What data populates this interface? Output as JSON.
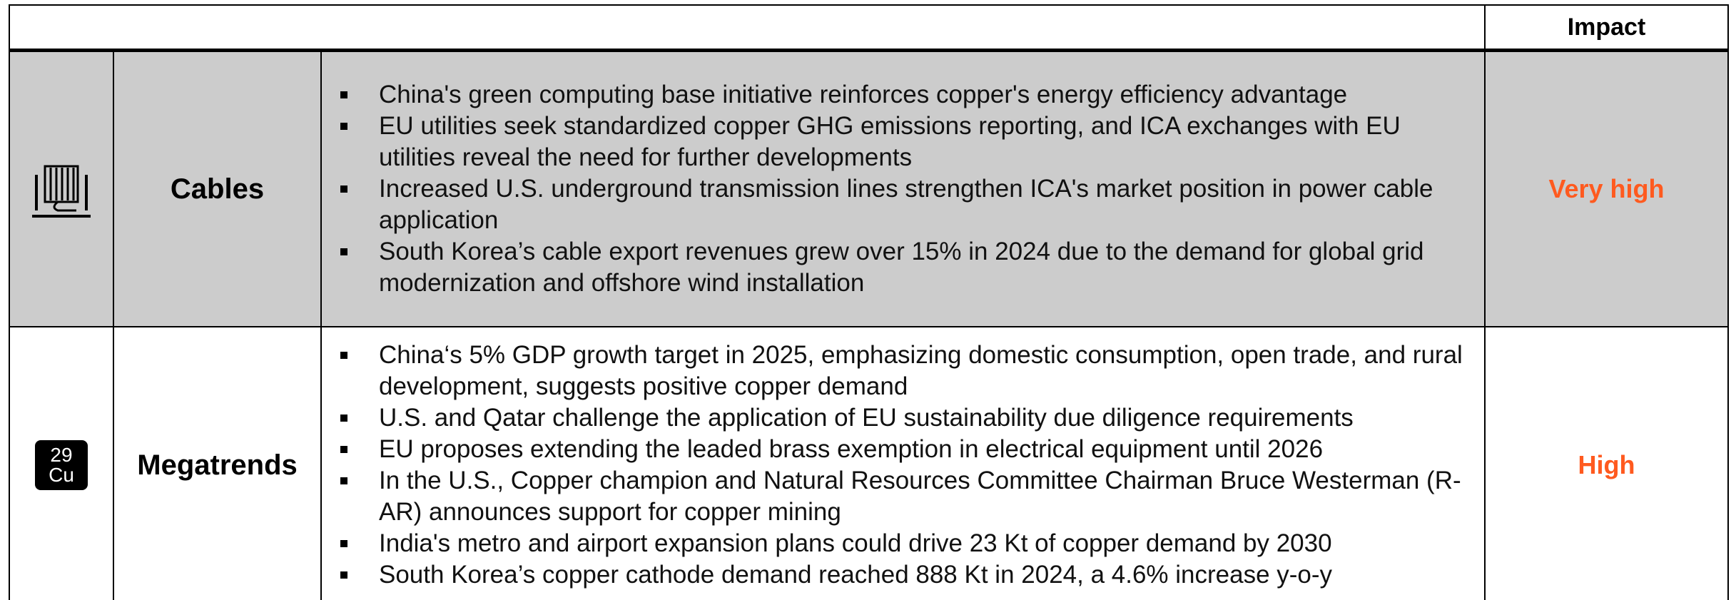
{
  "header": {
    "impact": "Impact"
  },
  "rows": [
    {
      "label": "Cables",
      "bullets": [
        "China's green computing base initiative reinforces copper's energy efficiency advantage",
        "EU utilities seek standardized copper GHG emissions reporting, and ICA exchanges with EU utilities reveal the need for further developments",
        "Increased U.S. underground transmission lines strengthen ICA's market position in power cable application",
        "South Korea’s cable export revenues grew over 15% in 2024 due to the demand for global grid modernization and offshore wind installation"
      ],
      "impact": "Very high"
    },
    {
      "label": "Megatrends",
      "icon": {
        "number": "29",
        "symbol": "Cu"
      },
      "bullets": [
        "China‘s 5% GDP growth target in 2025, emphasizing domestic consumption, open trade, and rural development, suggests positive copper demand",
        "U.S. and Qatar challenge the application of EU sustainability due diligence requirements",
        "EU proposes extending the leaded brass exemption in electrical equipment until 2026",
        "In the U.S., Copper champion and Natural Resources Committee Chairman Bruce Westerman (R-AR) announces support for copper mining",
        "India's metro and airport expansion plans could drive 23 Kt of copper demand by 2030",
        "South Korea’s copper cathode demand reached 888 Kt in 2024, a 4.6% increase y-o-y"
      ],
      "impact": "High"
    }
  ]
}
